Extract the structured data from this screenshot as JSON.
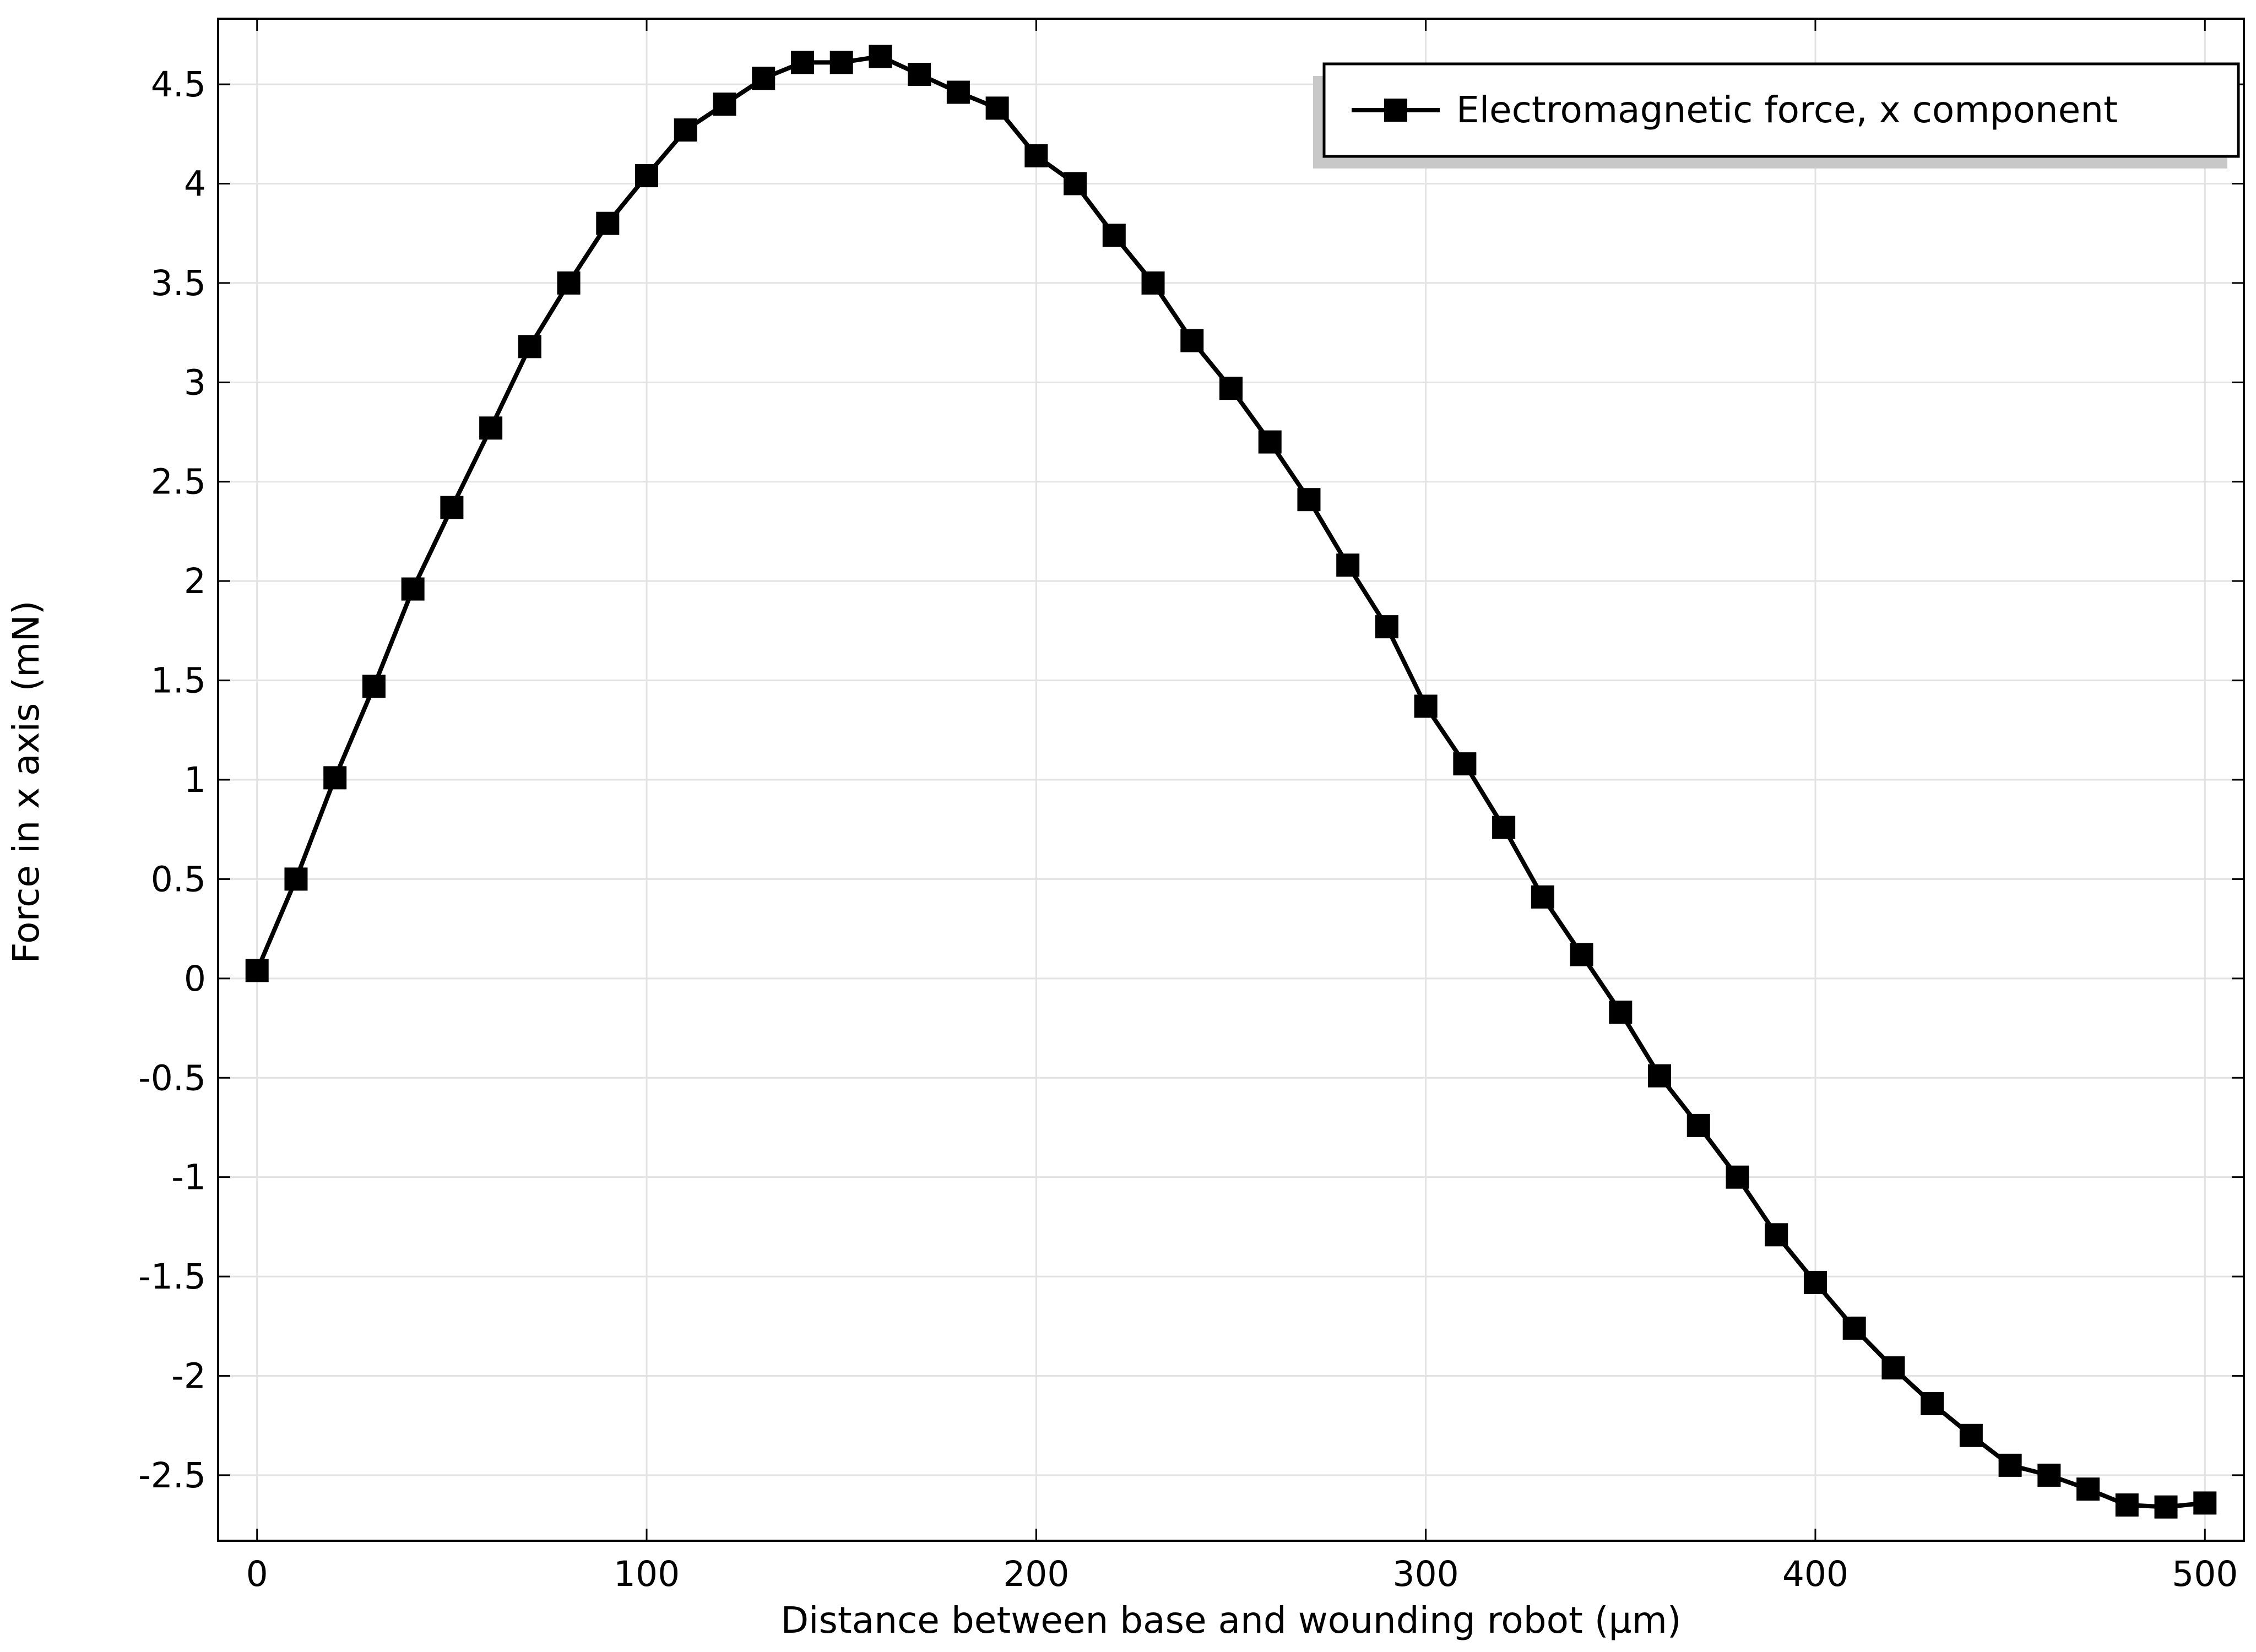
{
  "chart_data": {
    "type": "line",
    "xlabel": "Distance between base and wounding robot (µm)",
    "ylabel": "Force in x axis (mN)",
    "x": [
      0,
      10,
      20,
      30,
      40,
      50,
      60,
      70,
      80,
      90,
      100,
      110,
      120,
      130,
      140,
      150,
      160,
      170,
      180,
      190,
      200,
      210,
      220,
      230,
      240,
      250,
      260,
      270,
      280,
      290,
      300,
      310,
      320,
      330,
      340,
      350,
      360,
      370,
      380,
      390,
      400,
      410,
      420,
      430,
      440,
      450,
      460,
      470,
      480,
      490,
      500
    ],
    "series": [
      {
        "name": "Electromagnetic force, x component",
        "color": "#000000",
        "values": [
          0.04,
          0.5,
          1.01,
          1.47,
          1.96,
          2.37,
          2.77,
          3.18,
          3.5,
          3.8,
          4.04,
          4.27,
          4.4,
          4.53,
          4.61,
          4.61,
          4.64,
          4.55,
          4.46,
          4.38,
          4.14,
          4.0,
          3.74,
          3.5,
          3.21,
          2.97,
          2.7,
          2.41,
          2.08,
          1.77,
          1.37,
          1.08,
          0.76,
          0.41,
          0.12,
          -0.17,
          -0.49,
          -0.74,
          -1.0,
          -1.29,
          -1.53,
          -1.76,
          -1.96,
          -2.14,
          -2.3,
          -2.45,
          -2.5,
          -2.57,
          -2.65,
          -2.66,
          -2.64
        ]
      }
    ],
    "xlim": [
      -10,
      510
    ],
    "ylim": [
      -2.83,
      4.83
    ],
    "xticks": [
      0,
      100,
      200,
      300,
      400,
      500
    ],
    "yticks": [
      -2.5,
      -2,
      -1.5,
      -1,
      -0.5,
      0,
      0.5,
      1,
      1.5,
      2,
      2.5,
      3,
      3.5,
      4,
      4.5
    ],
    "grid": true,
    "legend": "upper right"
  }
}
